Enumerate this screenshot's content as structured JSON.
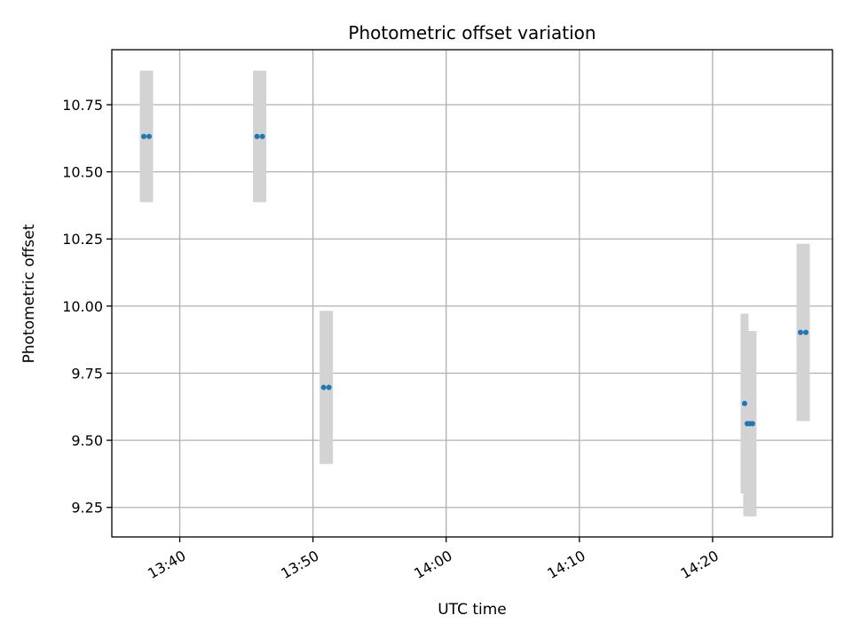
{
  "chart_data": {
    "type": "scatter",
    "title": "Photometric offset variation",
    "xlabel": "UTC time",
    "ylabel": "Photometric offset",
    "xlim": [
      "13:34:54",
      "14:29:00"
    ],
    "ylim": [
      9.14,
      10.955
    ],
    "x_ticks": [
      "13:40",
      "13:50",
      "14:00",
      "14:10",
      "14:20"
    ],
    "y_ticks": [
      "9.25",
      "9.50",
      "9.75",
      "10.00",
      "10.25",
      "10.50",
      "10.75"
    ],
    "grid": true,
    "colors": {
      "point": "#1f77b4",
      "error_bar": "#d3d3d3",
      "grid": "#b0b0b0"
    },
    "series": [
      {
        "points": [
          {
            "time": "13:37:18",
            "y": 10.632,
            "err": 0.245
          },
          {
            "time": "13:37:42",
            "y": 10.632,
            "err": 0.245
          },
          {
            "time": "13:45:48",
            "y": 10.632,
            "err": 0.245
          },
          {
            "time": "13:46:12",
            "y": 10.632,
            "err": 0.245
          },
          {
            "time": "13:50:48",
            "y": 9.697,
            "err": 0.285
          },
          {
            "time": "13:51:12",
            "y": 9.697,
            "err": 0.285
          },
          {
            "time": "14:22:24",
            "y": 9.637,
            "err": 0.335
          },
          {
            "time": "14:22:36",
            "y": 9.562,
            "err": 0.345
          },
          {
            "time": "14:22:48",
            "y": 9.562,
            "err": 0.345
          },
          {
            "time": "14:23:00",
            "y": 9.562,
            "err": 0.345
          },
          {
            "time": "14:26:36",
            "y": 9.902,
            "err": 0.33
          },
          {
            "time": "14:27:00",
            "y": 9.902,
            "err": 0.33
          }
        ]
      }
    ]
  }
}
